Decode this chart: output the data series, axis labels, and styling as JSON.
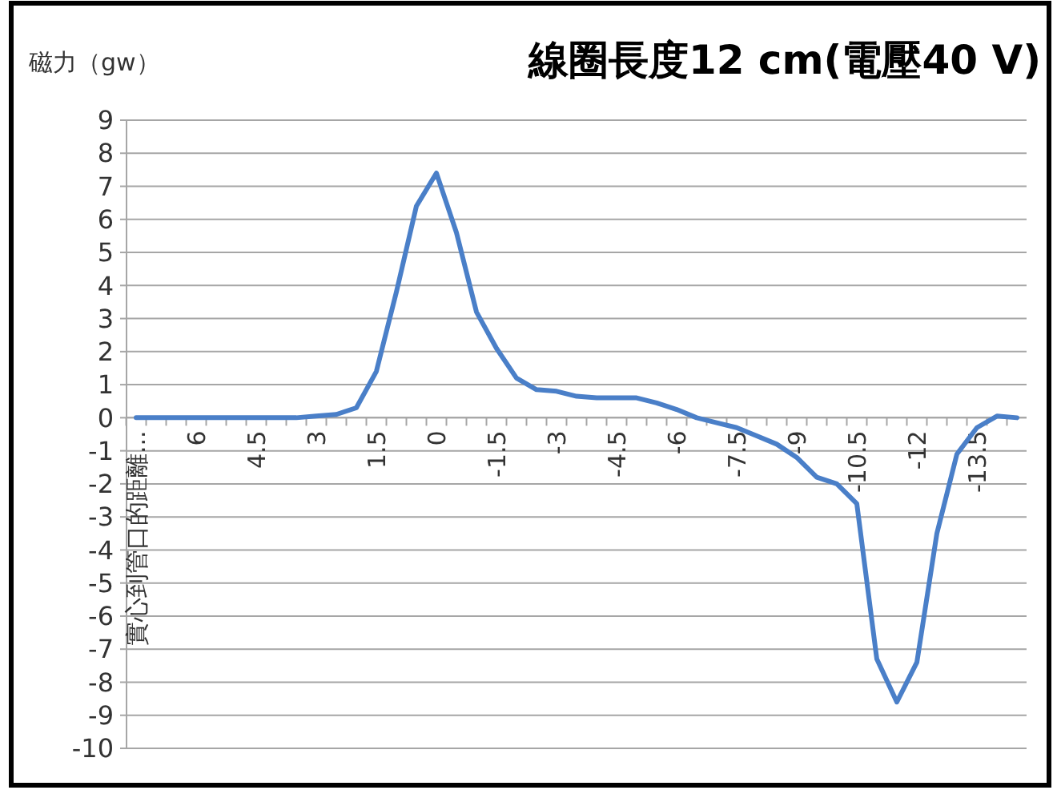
{
  "chart_data": {
    "type": "line",
    "title": "線圈長度12 cm(電壓40 V)",
    "ylabel": "磁力（gw）",
    "categories": [
      "實心到管口的距離...",
      null,
      null,
      "6",
      null,
      null,
      "4.5",
      null,
      null,
      "3",
      null,
      null,
      "1.5",
      null,
      null,
      "0",
      null,
      null,
      "-1.5",
      null,
      null,
      "-3",
      null,
      null,
      "-4.5",
      null,
      null,
      "-6",
      null,
      null,
      "-7.5",
      null,
      null,
      "-9",
      null,
      null,
      "-10.5",
      null,
      null,
      "-12",
      null,
      null,
      "-13.5",
      null,
      null
    ],
    "series": [
      {
        "color": "#4a7fc8",
        "values": [
          0,
          0,
          0,
          0,
          0,
          0,
          0,
          0,
          0,
          0.05,
          0.1,
          0.3,
          1.4,
          3.8,
          6.4,
          7.4,
          5.6,
          3.2,
          2.1,
          1.2,
          0.85,
          0.8,
          0.65,
          0.6,
          0.6,
          0.6,
          0.45,
          0.25,
          0,
          -0.15,
          -0.3,
          -0.55,
          -0.8,
          -1.2,
          -1.8,
          -2.0,
          -2.6,
          -7.3,
          -8.6,
          -7.4,
          -3.5,
          -1.1,
          -0.3,
          0.05,
          0
        ]
      }
    ],
    "ylim": [
      -10,
      9
    ],
    "yticks": [
      -10,
      -9,
      -8,
      -7,
      -6,
      -5,
      -4,
      -3,
      -2,
      -1,
      0,
      1,
      2,
      3,
      4,
      5,
      6,
      7,
      8,
      9
    ],
    "grid": "y",
    "marker": "none",
    "line_style": "solid"
  }
}
